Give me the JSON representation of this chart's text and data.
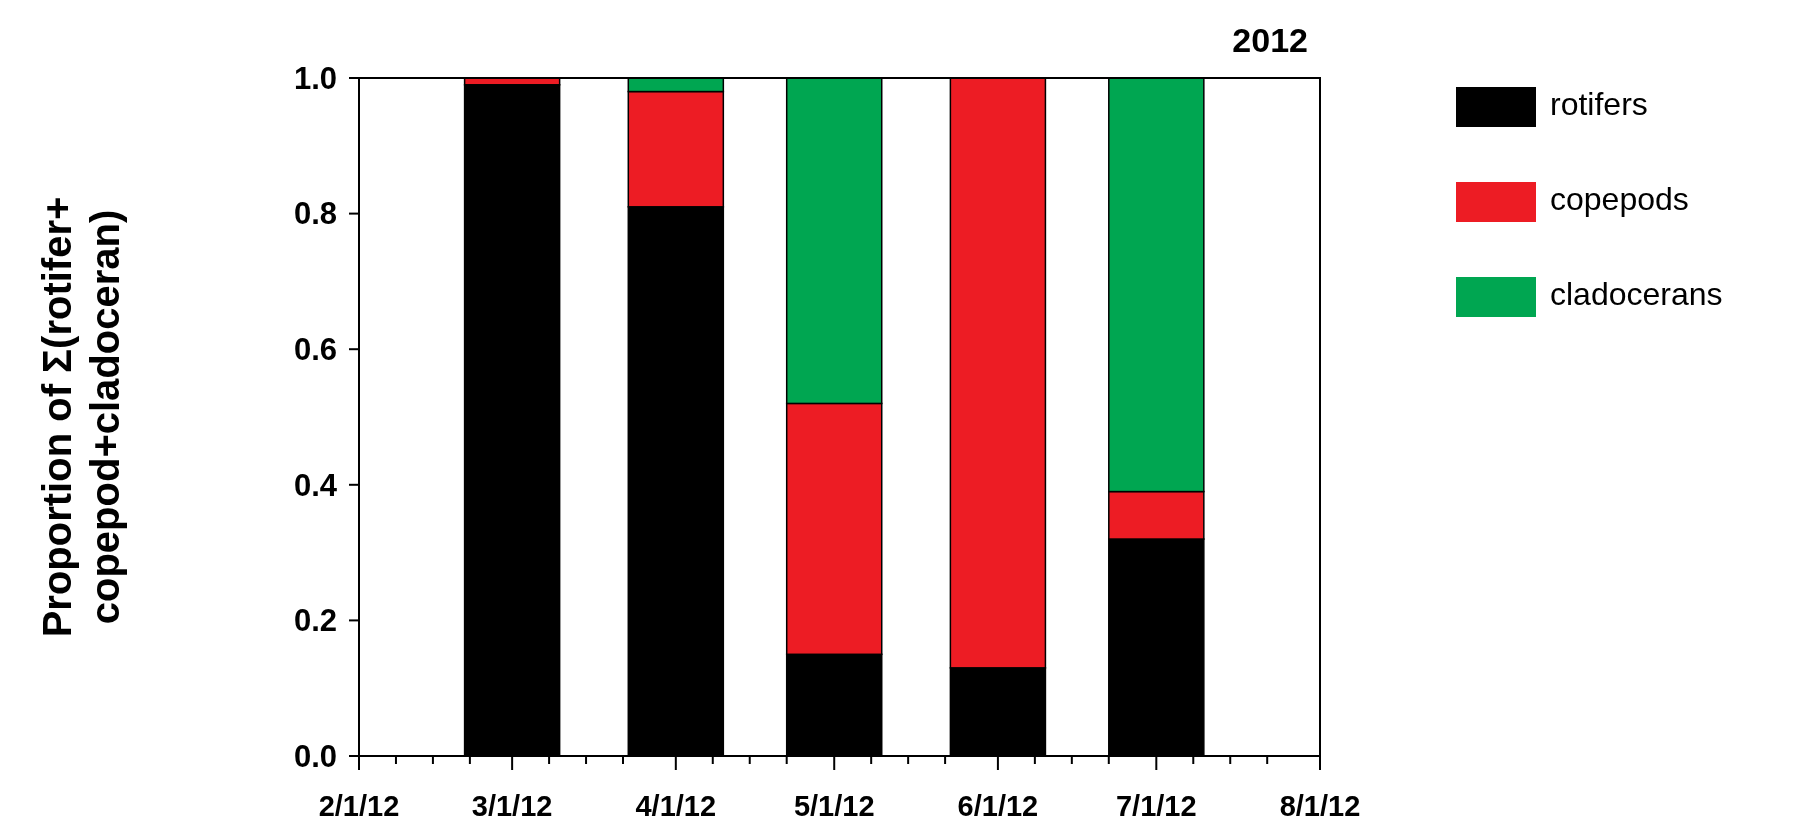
{
  "chart_data": {
    "type": "bar",
    "title": "2012",
    "ylabel": "Proportion of Σ(rotifer+\ncopepod+cladoceran)",
    "stacked": true,
    "legend": "right",
    "x": [
      "2012-03-01",
      "2012-04-01",
      "2012-05-01",
      "2012-06-01",
      "2012-07-01"
    ],
    "series": [
      {
        "name": "rotifers",
        "color": "#000000",
        "values": [
          0.99,
          0.81,
          0.15,
          0.13,
          0.32
        ]
      },
      {
        "name": "copepods",
        "color": "#ed1c24",
        "values": [
          0.01,
          0.17,
          0.37,
          0.87,
          0.07
        ]
      },
      {
        "name": "cladocerans",
        "color": "#00a651",
        "values": [
          0,
          0.02,
          0.48,
          0,
          0.61
        ]
      }
    ],
    "xlim": [
      "2012-02-01",
      "2012-08-01"
    ],
    "xticks": [
      {
        "value": "2012-02-01",
        "label": "2/1/12"
      },
      {
        "value": "2012-02-08",
        "label": null
      },
      {
        "value": "2012-02-15",
        "label": null
      },
      {
        "value": "2012-02-22",
        "label": null
      },
      {
        "value": "2012-03-01",
        "label": "3/1/12"
      },
      {
        "value": "2012-03-08",
        "label": null
      },
      {
        "value": "2012-03-15",
        "label": null
      },
      {
        "value": "2012-03-22",
        "label": null
      },
      {
        "value": "2012-04-01",
        "label": "4/1/12"
      },
      {
        "value": "2012-04-08",
        "label": null
      },
      {
        "value": "2012-04-15",
        "label": null
      },
      {
        "value": "2012-04-22",
        "label": null
      },
      {
        "value": "2012-05-01",
        "label": "5/1/12"
      },
      {
        "value": "2012-05-08",
        "label": null
      },
      {
        "value": "2012-05-15",
        "label": null
      },
      {
        "value": "2012-05-22",
        "label": null
      },
      {
        "value": "2012-06-01",
        "label": "6/1/12"
      },
      {
        "value": "2012-06-08",
        "label": null
      },
      {
        "value": "2012-06-15",
        "label": null
      },
      {
        "value": "2012-06-22",
        "label": null
      },
      {
        "value": "2012-07-01",
        "label": "7/1/12"
      },
      {
        "value": "2012-07-08",
        "label": null
      },
      {
        "value": "2012-07-15",
        "label": null
      },
      {
        "value": "2012-07-22",
        "label": null
      },
      {
        "value": "2012-08-01",
        "label": "8/1/12"
      }
    ],
    "ylim": [
      0,
      1
    ],
    "yticks": [
      {
        "value": 0,
        "label": "0.0"
      },
      {
        "value": 0.2,
        "label": "0.2"
      },
      {
        "value": 0.4,
        "label": "0.4"
      },
      {
        "value": 0.6,
        "label": "0.6"
      },
      {
        "value": 0.8,
        "label": "0.8"
      },
      {
        "value": 1,
        "label": "1.0"
      }
    ],
    "grid": false
  }
}
